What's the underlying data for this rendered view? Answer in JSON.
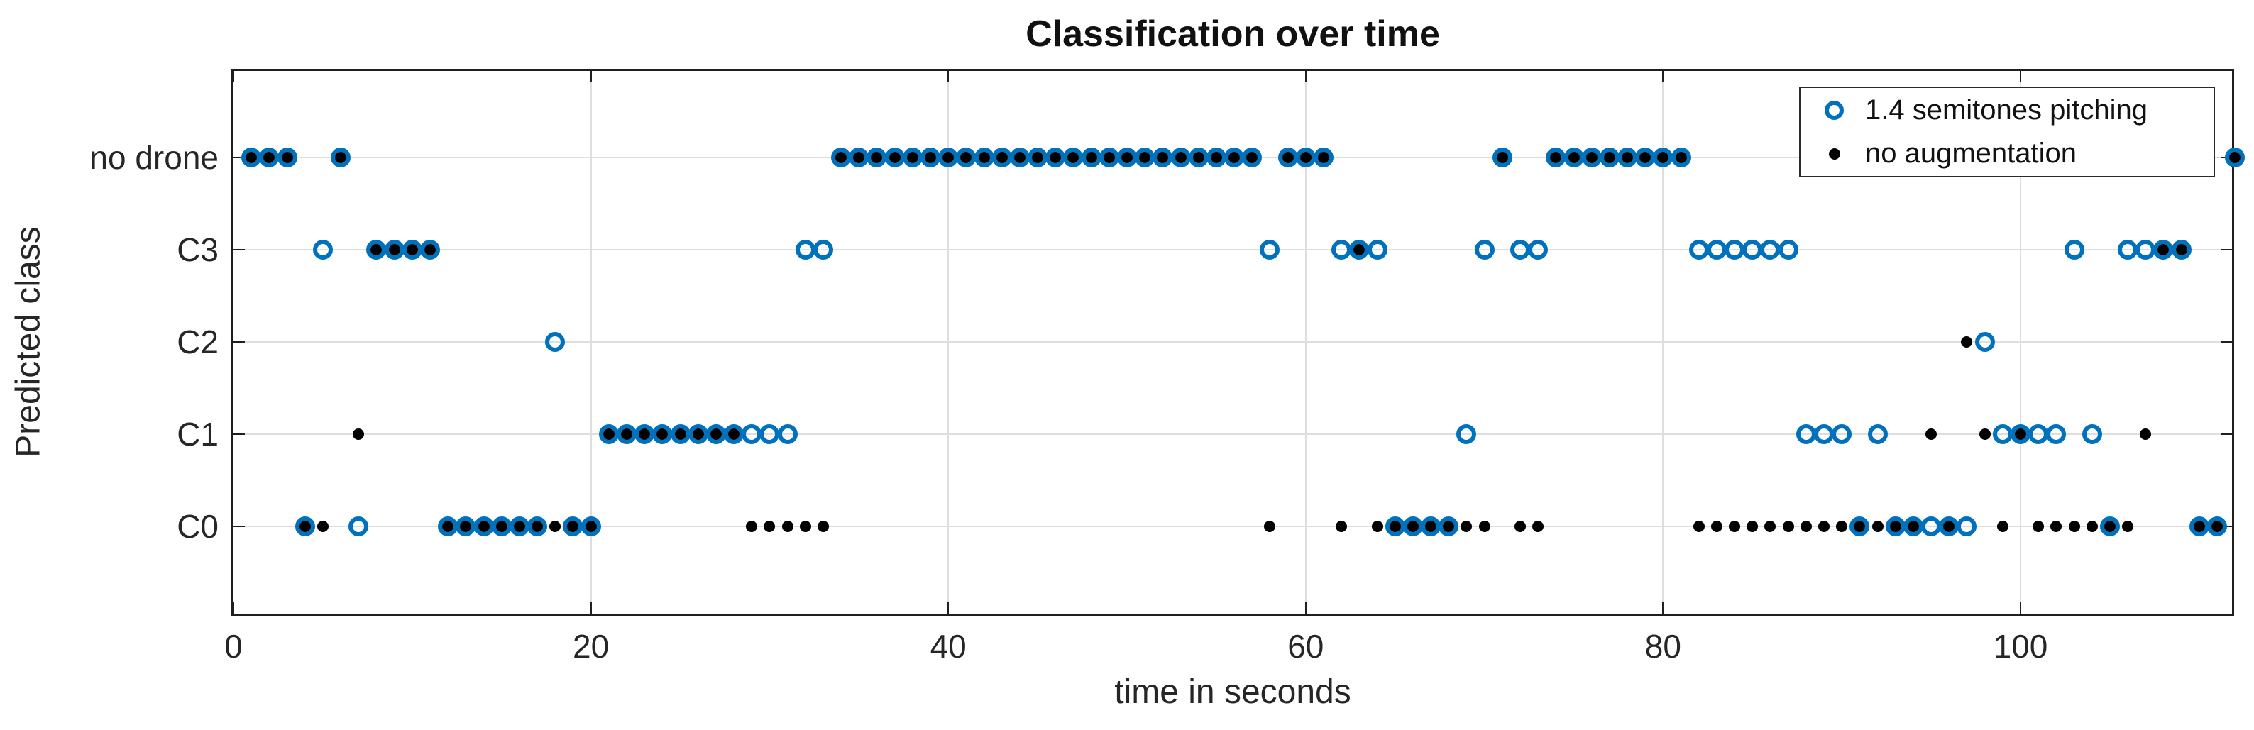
{
  "chart_data": {
    "type": "scatter",
    "title": "Classification over time",
    "xlabel": "time in seconds",
    "ylabel": "Predicted class",
    "xlim": [
      0,
      112
    ],
    "x_ticks": [
      0,
      20,
      40,
      60,
      80,
      100
    ],
    "x_grid": [
      20,
      40,
      60,
      80,
      100
    ],
    "y_categories": [
      "C0",
      "C1",
      "C2",
      "C3",
      "no drone"
    ],
    "grid": true,
    "legend_position": "top-right",
    "marker_styles": {
      "open_circle_color": "#0072BD",
      "filled_dot_color": "#000000"
    },
    "series": [
      {
        "name": "1.4 semitones pitching",
        "marker": "open-circle",
        "color": "#0072BD",
        "points_by_category": {
          "no drone": [
            1,
            2,
            3,
            6,
            34,
            35,
            36,
            37,
            38,
            39,
            40,
            41,
            42,
            43,
            44,
            45,
            46,
            47,
            48,
            49,
            50,
            51,
            52,
            53,
            54,
            55,
            56,
            57,
            59,
            60,
            61,
            71,
            74,
            75,
            76,
            77,
            78,
            79,
            80,
            81,
            112
          ],
          "C3": [
            5,
            8,
            9,
            10,
            11,
            32,
            33,
            58,
            62,
            63,
            64,
            70,
            72,
            73,
            82,
            83,
            84,
            85,
            86,
            87,
            103,
            106,
            107,
            108,
            109
          ],
          "C2": [
            18,
            98
          ],
          "C1": [
            21,
            22,
            23,
            24,
            25,
            26,
            27,
            28,
            29,
            30,
            31,
            69,
            88,
            89,
            90,
            92,
            99,
            100,
            101,
            102,
            104
          ],
          "C0": [
            4,
            7,
            12,
            13,
            14,
            15,
            16,
            17,
            19,
            20,
            65,
            66,
            67,
            68,
            91,
            93,
            94,
            95,
            96,
            97,
            105,
            110,
            111
          ]
        }
      },
      {
        "name": "no augmentation",
        "marker": "filled-dot",
        "color": "#000000",
        "points_by_category": {
          "no drone": [
            1,
            2,
            3,
            6,
            34,
            35,
            36,
            37,
            38,
            39,
            40,
            41,
            42,
            43,
            44,
            45,
            46,
            47,
            48,
            49,
            50,
            51,
            52,
            53,
            54,
            55,
            56,
            57,
            59,
            60,
            61,
            71,
            74,
            75,
            76,
            77,
            78,
            79,
            80,
            81,
            112
          ],
          "C3": [
            8,
            9,
            10,
            11,
            63,
            108,
            109
          ],
          "C2": [
            97
          ],
          "C1": [
            7,
            21,
            22,
            23,
            24,
            25,
            26,
            27,
            28,
            95,
            98,
            100,
            107
          ],
          "C0": [
            4,
            5,
            12,
            13,
            14,
            15,
            16,
            17,
            18,
            19,
            20,
            29,
            30,
            31,
            32,
            33,
            58,
            62,
            64,
            65,
            66,
            67,
            68,
            69,
            70,
            72,
            73,
            82,
            83,
            84,
            85,
            86,
            87,
            88,
            89,
            90,
            91,
            92,
            93,
            94,
            96,
            99,
            101,
            102,
            103,
            104,
            105,
            106,
            110,
            111
          ]
        }
      }
    ]
  }
}
